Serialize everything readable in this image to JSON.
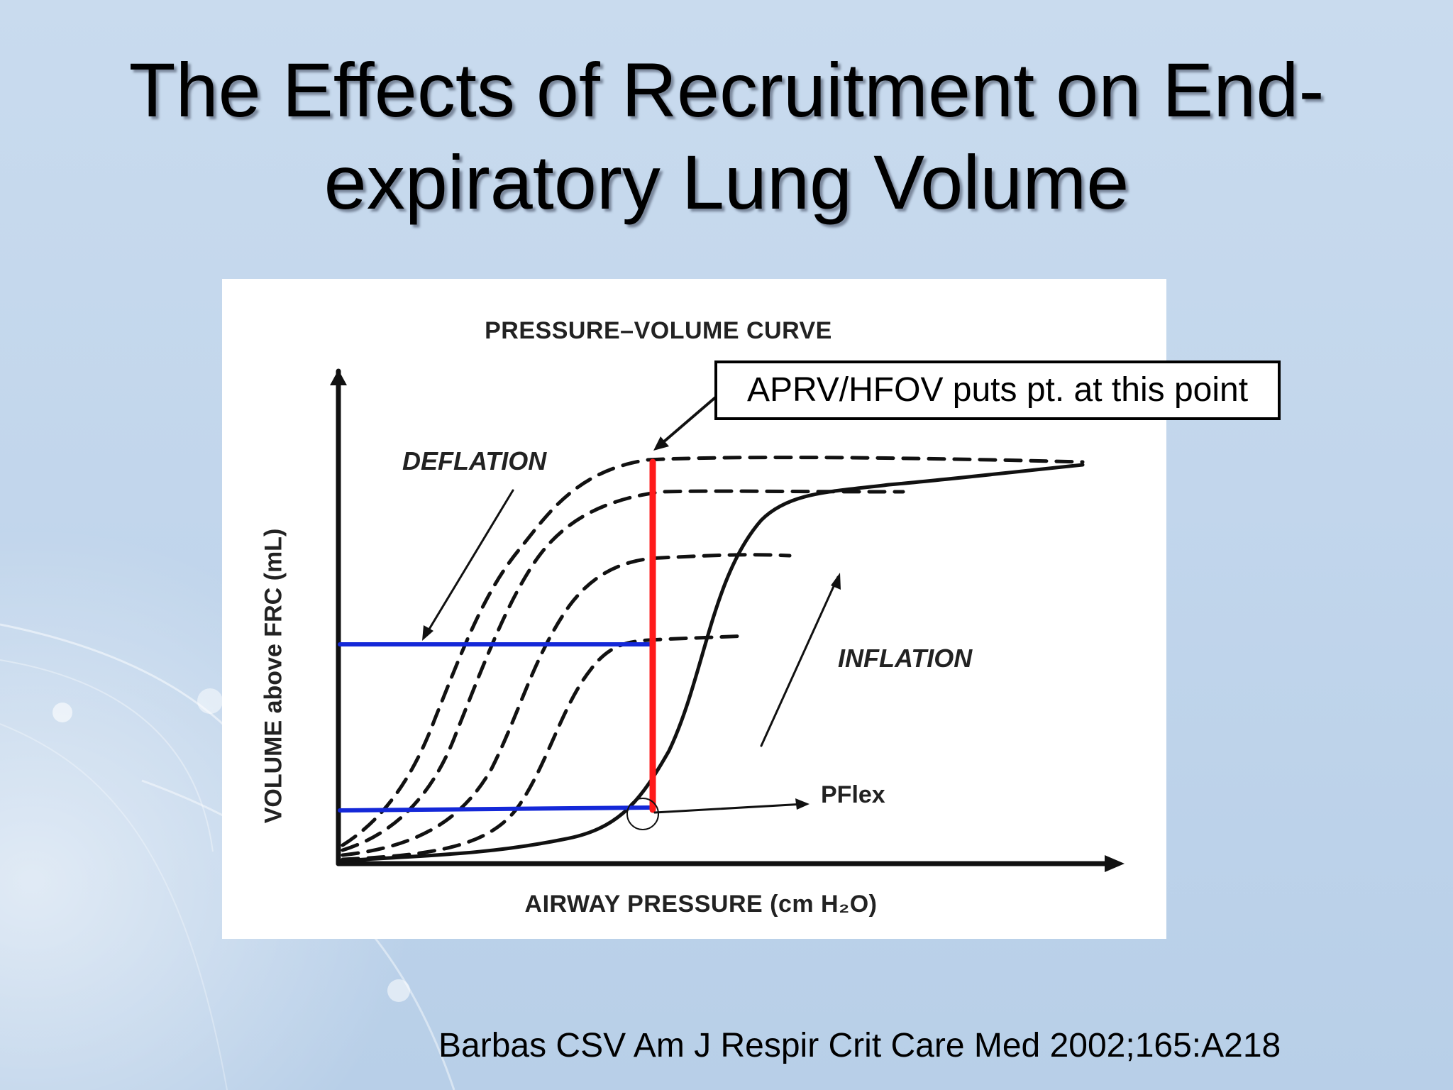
{
  "slide": {
    "title_line1": "The Effects of Recruitment on End-",
    "title_line2": "expiratory Lung Volume",
    "citation": "Barbas CSV Am J Respir Crit Care Med 2002;165:A218"
  },
  "figure": {
    "chart_title": "PRESSURE–VOLUME CURVE",
    "y_axis_label": "VOLUME above FRC (mL)",
    "x_axis_label": "AIRWAY PRESSURE (cm H₂O)",
    "deflation_label": "DEFLATION",
    "inflation_label": "INFLATION",
    "pflex_label": "PFlex",
    "callout_text": "APRV/HFOV puts pt. at this point"
  },
  "colors": {
    "highlight_vertical": "#ff1a1a",
    "highlight_horizontal": "#1428d8",
    "curves": "#111111"
  }
}
